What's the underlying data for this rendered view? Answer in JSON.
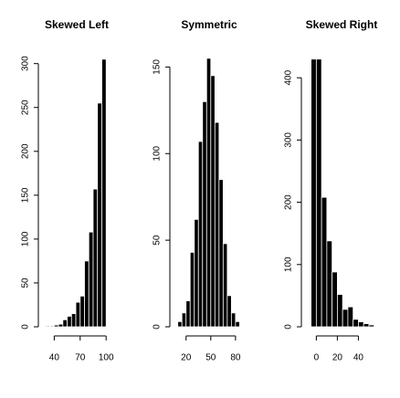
{
  "chart_data": [
    {
      "type": "histogram",
      "title": "Skewed Left",
      "bins": [
        30,
        35,
        40,
        45,
        50,
        55,
        60,
        65,
        70,
        75,
        80,
        85,
        90,
        95,
        100
      ],
      "values": [
        1,
        1,
        2,
        3,
        8,
        12,
        15,
        28,
        35,
        75,
        108,
        157,
        255,
        305
      ],
      "color": "#000000",
      "xlim": [
        28,
        104
      ],
      "xticks": [
        40,
        70,
        100
      ],
      "ylim": [
        0,
        308
      ],
      "yticks": [
        0,
        50,
        100,
        150,
        200,
        250,
        300
      ]
    },
    {
      "type": "histogram",
      "title": "Symmetric",
      "bins": [
        10,
        15,
        20,
        25,
        30,
        35,
        40,
        45,
        50,
        55,
        60,
        65,
        70,
        75,
        80,
        85
      ],
      "values": [
        3,
        8,
        15,
        43,
        62,
        107,
        130,
        155,
        145,
        118,
        85,
        48,
        18,
        8,
        3
      ],
      "color": "#000000",
      "xlim": [
        7,
        89
      ],
      "xticks": [
        20,
        50,
        80
      ],
      "ylim": [
        0,
        156
      ],
      "yticks": [
        0,
        50,
        100,
        150
      ]
    },
    {
      "type": "histogram",
      "title": "Skewed Right",
      "bins": [
        -5,
        0,
        5,
        10,
        15,
        20,
        25,
        30,
        35,
        40,
        45,
        50,
        55
      ],
      "values": [
        430,
        430,
        208,
        138,
        88,
        52,
        28,
        32,
        12,
        8,
        5,
        3
      ],
      "color": "#000000",
      "xlim": [
        -9,
        57
      ],
      "xticks": [
        0,
        20,
        40
      ],
      "ylim": [
        0,
        434
      ],
      "yticks": [
        0,
        100,
        200,
        300,
        400
      ]
    }
  ]
}
